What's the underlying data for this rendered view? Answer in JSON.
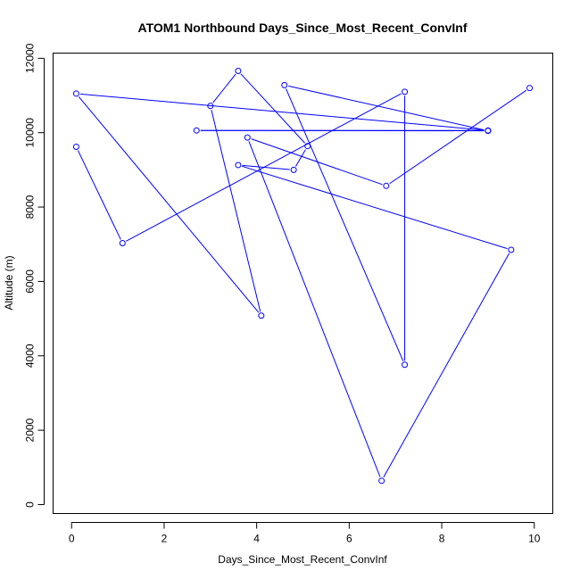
{
  "chart_data": {
    "type": "line",
    "title": "ATOM1 Northbound Days_Since_Most_Recent_ConvInf",
    "xlabel": "Days_Since_Most_Recent_ConvInf",
    "ylabel": "Altitude (m)",
    "xlim": [
      -0.4,
      10.4
    ],
    "ylim": [
      -240,
      12140
    ],
    "xticks": [
      0,
      2,
      4,
      6,
      8,
      10
    ],
    "yticks": [
      0,
      2000,
      4000,
      6000,
      8000,
      10000,
      12000
    ],
    "grid": false,
    "legend": "none",
    "type_detail": "points connected by lines (type='b')",
    "series": [
      {
        "x": [
          0.1,
          1.1,
          7.2,
          7.2,
          4.6,
          9.0,
          2.7,
          9.0,
          0.1,
          4.1,
          3.0,
          3.6,
          5.1,
          4.8,
          3.6,
          9.5,
          6.7,
          3.8,
          6.8,
          9.9
        ],
        "y": [
          9620,
          7030,
          11100,
          3760,
          11280,
          10050,
          10060,
          10060,
          11050,
          5080,
          10720,
          11660,
          9640,
          9000,
          9130,
          6850,
          640,
          9870,
          8570,
          11200
        ]
      }
    ],
    "colors": {
      "series": "#0000ff",
      "axes": "#000000",
      "background": "#ffffff"
    }
  }
}
